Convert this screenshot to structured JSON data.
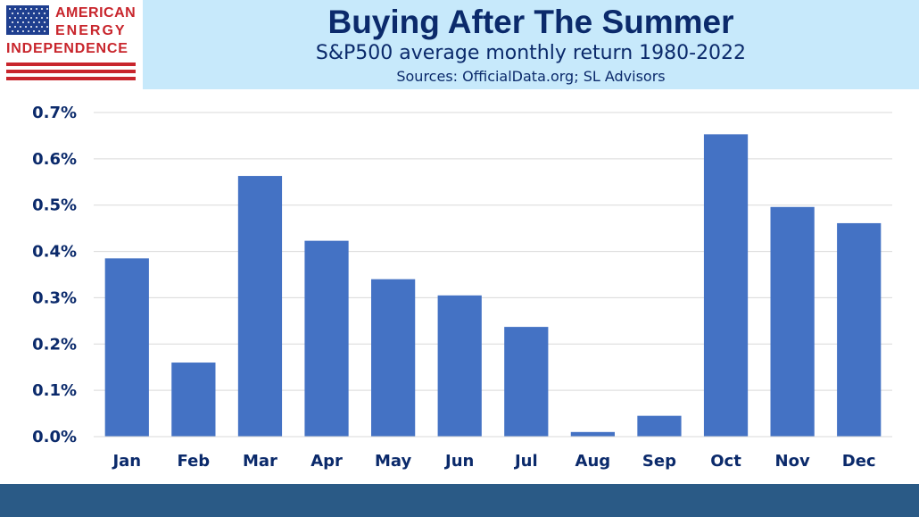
{
  "logo": {
    "line1": "AMERICAN",
    "line2": "ENERGY",
    "line3": "INDEPENDENCE",
    "colors": {
      "red": "#c8252c",
      "blue": "#1f3f8f"
    }
  },
  "header": {
    "title": "Buying After The Summer",
    "subtitle": "S&P500 average monthly return 1980-2022",
    "sources": "Sources: OfficialData.org; SL Advisors",
    "background": "#c7e9fb",
    "text_color": "#0b2a6b"
  },
  "chart_data": {
    "type": "bar",
    "title": "Buying After The Summer",
    "subtitle": "S&P500 average monthly return 1980-2022",
    "xlabel": "",
    "ylabel": "",
    "categories": [
      "Jan",
      "Feb",
      "Mar",
      "Apr",
      "May",
      "Jun",
      "Jul",
      "Aug",
      "Sep",
      "Oct",
      "Nov",
      "Dec"
    ],
    "values": [
      0.385,
      0.16,
      0.563,
      0.423,
      0.34,
      0.305,
      0.237,
      0.01,
      0.045,
      0.653,
      0.496,
      0.461
    ],
    "value_unit": "%",
    "ylim": [
      0,
      0.7
    ],
    "yticks": [
      0.0,
      0.1,
      0.2,
      0.3,
      0.4,
      0.5,
      0.6,
      0.7
    ],
    "ytick_labels": [
      "0.0%",
      "0.1%",
      "0.2%",
      "0.3%",
      "0.4%",
      "0.5%",
      "0.6%",
      "0.7%"
    ],
    "grid": true,
    "legend": "none",
    "bar_color": "#4472c4",
    "grid_color": "#d9d9d9",
    "label_color": "#0b2a6b"
  },
  "footer": {
    "color": "#2a5a86"
  }
}
